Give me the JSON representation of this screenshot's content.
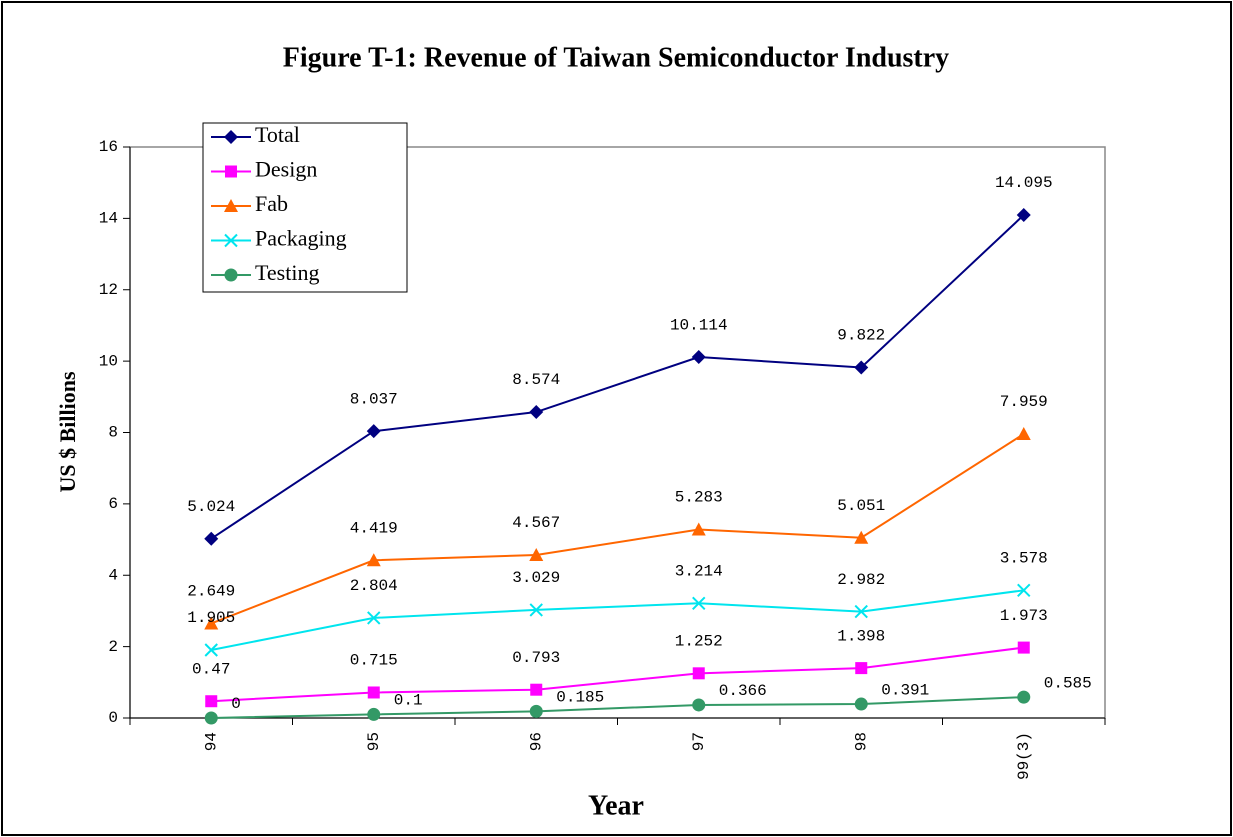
{
  "chart_data": {
    "type": "line",
    "title": "Figure T-1: Revenue of Taiwan Semiconductor Industry",
    "xlabel": "Year",
    "ylabel": "US $ Billions",
    "categories": [
      "94",
      "95",
      "96",
      "97",
      "98",
      "99(3)"
    ],
    "series": [
      {
        "name": "Total",
        "color": "#000080",
        "marker": "diamond",
        "values": [
          5.024,
          8.037,
          8.574,
          10.114,
          9.822,
          14.095
        ]
      },
      {
        "name": "Design",
        "color": "#ff00ff",
        "marker": "square",
        "values": [
          0.47,
          0.715,
          0.793,
          1.252,
          1.398,
          1.973
        ]
      },
      {
        "name": "Fab",
        "color": "#ff6600",
        "marker": "triangle",
        "values": [
          2.649,
          4.419,
          4.567,
          5.283,
          5.051,
          7.959
        ]
      },
      {
        "name": "Packaging",
        "color": "#00e5ee",
        "marker": "x",
        "values": [
          1.905,
          2.804,
          3.029,
          3.214,
          2.982,
          3.578
        ]
      },
      {
        "name": "Testing",
        "color": "#339966",
        "marker": "circle",
        "values": [
          0,
          0.1,
          0.185,
          0.366,
          0.391,
          0.585
        ]
      }
    ],
    "ylim": [
      0,
      16
    ],
    "yticks": [
      0,
      2,
      4,
      6,
      8,
      10,
      12,
      14,
      16
    ],
    "legend": "upper left",
    "grid": false
  }
}
